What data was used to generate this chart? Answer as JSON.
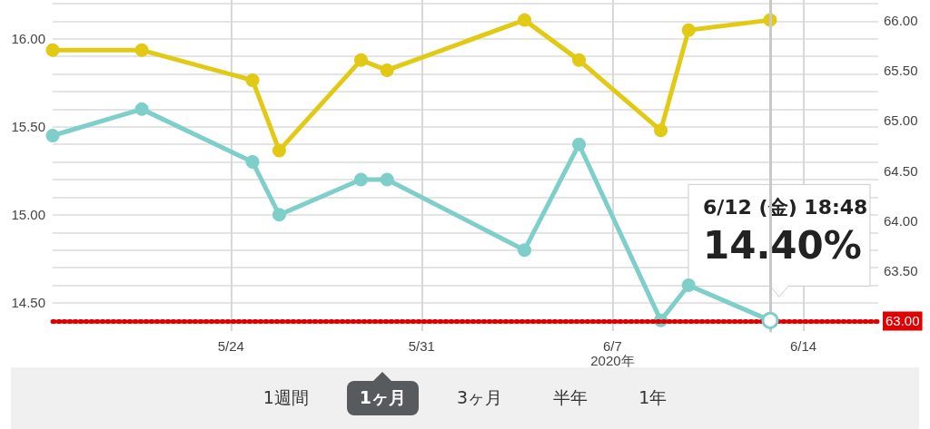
{
  "chart_data": {
    "type": "line",
    "xlim": [
      "2020-05-17T11:00",
      "2020-06-16T18:00"
    ],
    "xticks": [
      {
        "value": "2020-05-24",
        "label": "5/24"
      },
      {
        "value": "2020-05-31",
        "label": "5/31"
      },
      {
        "value": "2020-06-07",
        "label": "6/7\n2020年"
      },
      {
        "value": "2020-06-14",
        "label": "6/14"
      }
    ],
    "ylim": [
      14.34,
      16.22
    ],
    "yticks": [
      {
        "value": 14.4,
        "label": null
      },
      {
        "value": 14.5,
        "label": "14.50"
      },
      {
        "value": 14.6,
        "label": null
      },
      {
        "value": 14.7,
        "label": null
      },
      {
        "value": 14.8,
        "label": null
      },
      {
        "value": 14.9,
        "label": null
      },
      {
        "value": 15,
        "label": "15.00"
      },
      {
        "value": 15.1,
        "label": null
      },
      {
        "value": 15.2,
        "label": null
      },
      {
        "value": 15.3,
        "label": null
      },
      {
        "value": 15.4,
        "label": null
      },
      {
        "value": 15.5,
        "label": "15.50"
      },
      {
        "value": 15.6,
        "label": null
      },
      {
        "value": 15.7,
        "label": null
      },
      {
        "value": 15.8,
        "label": null
      },
      {
        "value": 15.9,
        "label": null
      },
      {
        "value": 16,
        "label": "16.00"
      },
      {
        "value": 16.1,
        "label": null
      },
      {
        "value": 16.2,
        "label": null
      }
    ],
    "y2lim": [
      62.9,
      66.2
    ],
    "y2ticks": [
      {
        "value": 63.5,
        "label": "63.50"
      },
      {
        "value": 64,
        "label": "64.00"
      },
      {
        "value": 64.5,
        "label": "64.50"
      },
      {
        "value": 65,
        "label": "65.00"
      },
      {
        "value": 65.5,
        "label": "65.50"
      },
      {
        "value": 66,
        "label": "66.00"
      }
    ],
    "grid": true,
    "marker": "circle",
    "line_style": "solid",
    "series": [
      {
        "color": "#e2c914",
        "axis": "y2",
        "x": [
          "2020-05-17T11:00",
          "2020-05-20T17:30",
          "2020-05-24T19:00",
          "2020-05-25T18:30",
          "2020-05-28T18:30",
          "2020-05-29T17:30",
          "2020-06-03T18:30",
          "2020-06-05T18:30",
          "2020-06-08T18:30",
          "2020-06-09T19:00",
          "2020-06-12T18:48"
        ],
        "values": [
          65.7,
          65.7,
          65.4,
          64.7,
          65.6,
          65.5,
          66.0,
          65.6,
          64.9,
          65.9,
          66.0
        ]
      },
      {
        "color": "#7ecfca",
        "x": [
          "2020-05-17T11:00",
          "2020-05-20T17:30",
          "2020-05-24T19:00",
          "2020-05-25T18:30",
          "2020-05-28T18:30",
          "2020-05-29T17:30",
          "2020-06-03T18:30",
          "2020-06-05T18:30",
          "2020-06-08T18:30",
          "2020-06-09T19:00",
          "2020-06-12T18:48"
        ],
        "values": [
          15.45,
          15.6,
          15.3,
          15.0,
          15.2,
          15.2,
          14.8,
          15.4,
          14.4,
          14.6,
          14.4
        ]
      }
    ],
    "ref_lines": [
      {
        "axis": "y2",
        "value": 63,
        "label": "63.00",
        "color": "#e00000",
        "line_style": "dotted"
      },
      {
        "axis": "x",
        "value": "2020-06-12T18:48",
        "color": "#c8c8c8",
        "line_style": "solid"
      }
    ],
    "annotations": [
      "6/12 (金) 18:48",
      "14.40%",
      "1週間",
      "1ヶ月",
      "3ヶ月",
      "半年",
      "1年"
    ]
  }
}
